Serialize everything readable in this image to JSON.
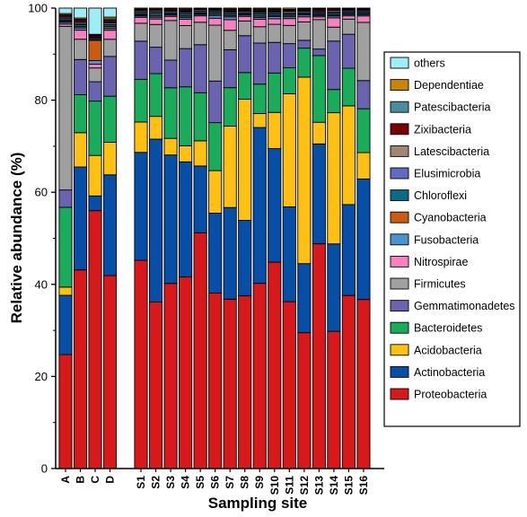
{
  "chart_data": {
    "type": "bar",
    "stacked": true,
    "xlabel": "Sampling site",
    "ylabel": "Relative abundance (%)",
    "ylim": [
      0,
      100
    ],
    "yticks": [
      0,
      20,
      40,
      60,
      80,
      100
    ],
    "grid": false,
    "legend_position": "right",
    "categories": [
      "A",
      "B",
      "C",
      "D",
      "S1",
      "S2",
      "S3",
      "S4",
      "S5",
      "S6",
      "S7",
      "S8",
      "S9",
      "S10",
      "S11",
      "S12",
      "S13",
      "S14",
      "S15",
      "S16"
    ],
    "series": [
      {
        "name": "Proteobacteria",
        "color": "#d7191c",
        "values": [
          25.0,
          44.0,
          56.0,
          42.7,
          45.3,
          36.6,
          40.2,
          41.6,
          51.5,
          38.0,
          36.6,
          37.5,
          39.7,
          44.5,
          36.6,
          29.5,
          48.8,
          29.5,
          37.7,
          36.6
        ]
      },
      {
        "name": "Actinobacteria",
        "color": "#074ea6",
        "values": [
          13.0,
          22.8,
          3.2,
          22.3,
          23.5,
          35.8,
          27.9,
          25.0,
          14.6,
          17.3,
          19.8,
          16.4,
          33.4,
          24.5,
          20.8,
          15.0,
          21.7,
          18.8,
          19.8,
          26.1
        ]
      },
      {
        "name": "Acidobacteria",
        "color": "#fdc013",
        "values": [
          1.8,
          7.6,
          8.8,
          7.2,
          6.6,
          5.0,
          3.6,
          3.5,
          5.5,
          9.2,
          17.6,
          26.3,
          3.0,
          7.8,
          24.8,
          40.5,
          4.7,
          28.2,
          21.5,
          5.7
        ]
      },
      {
        "name": "Bacteroidetes",
        "color": "#1aab5b",
        "values": [
          17.5,
          8.4,
          11.8,
          10.2,
          9.3,
          9.4,
          11.0,
          12.8,
          10.5,
          10.4,
          8.3,
          5.8,
          6.3,
          8.5,
          5.7,
          6.3,
          14.5,
          5.0,
          8.2,
          9.5
        ]
      },
      {
        "name": "Gemmatimonadetes",
        "color": "#6a64b0",
        "values": [
          3.8,
          7.8,
          4.2,
          8.8,
          8.3,
          5.8,
          6.0,
          8.3,
          10.5,
          9.0,
          8.2,
          8.0,
          8.8,
          6.6,
          5.3,
          1.7,
          1.4,
          10.4,
          7.4,
          6.1
        ]
      },
      {
        "name": "Firmicutes",
        "color": "#a0a0a0",
        "values": [
          35.9,
          4.5,
          3.0,
          3.8,
          3.9,
          5.0,
          8.6,
          5.0,
          4.9,
          12.1,
          4.2,
          3.2,
          3.5,
          3.9,
          4.0,
          4.0,
          6.4,
          3.0,
          3.3,
          12.6
        ]
      },
      {
        "name": "Nitrospirae",
        "color": "#f780bf",
        "values": [
          0.5,
          2.0,
          0.8,
          2.0,
          1.3,
          1.2,
          0.9,
          1.4,
          1.4,
          1.5,
          2.3,
          1.0,
          1.6,
          1.2,
          1.5,
          1.1,
          0.6,
          2.0,
          0.7,
          1.4
        ]
      },
      {
        "name": "Fusobacteria",
        "color": "#4a92d0",
        "values": [
          0.4,
          0.5,
          0.8,
          0.4,
          0.3,
          0.4,
          0.3,
          0.4,
          0.3,
          0.6,
          0.6,
          0.3,
          0.4,
          0.5,
          0.4,
          0.4,
          0.3,
          0.4,
          0.3,
          0.3
        ]
      },
      {
        "name": "Cyanobacteria",
        "color": "#cc5a11",
        "values": [
          0.2,
          0.3,
          4.4,
          0.4,
          0.2,
          0.3,
          0.2,
          0.3,
          0.2,
          0.3,
          0.3,
          0.2,
          0.3,
          0.2,
          0.3,
          0.2,
          0.2,
          0.2,
          0.2,
          0.2
        ]
      },
      {
        "name": "Chloroflexi",
        "color": "#086c86",
        "values": [
          0.3,
          0.4,
          0.2,
          0.4,
          0.3,
          0.5,
          0.3,
          0.5,
          0.2,
          0.4,
          0.4,
          0.3,
          0.5,
          0.4,
          0.3,
          0.3,
          0.3,
          0.4,
          0.3,
          0.3
        ]
      },
      {
        "name": "Elusimicrobia",
        "color": "#5e6bc1",
        "values": [
          0.3,
          0.3,
          0.3,
          0.4,
          0.3,
          0.3,
          0.3,
          0.3,
          0.3,
          0.3,
          0.3,
          0.3,
          0.3,
          0.3,
          0.3,
          0.3,
          0.3,
          0.3,
          0.3,
          0.3
        ]
      },
      {
        "name": "Latescibacteria",
        "color": "#a28675",
        "values": [
          0.3,
          0.3,
          0.2,
          0.2,
          0.3,
          0.3,
          0.2,
          0.2,
          0.3,
          0.2,
          0.2,
          0.2,
          0.2,
          0.2,
          0.3,
          0.2,
          0.2,
          0.3,
          0.2,
          0.2
        ]
      },
      {
        "name": "Zixibacteria",
        "color": "#7a0000",
        "values": [
          0.3,
          0.4,
          0.3,
          0.4,
          0.2,
          0.3,
          0.3,
          0.3,
          0.2,
          0.2,
          0.3,
          0.3,
          0.3,
          0.3,
          0.2,
          0.3,
          0.3,
          0.3,
          0.2,
          0.2
        ]
      },
      {
        "name": "Patescibacteria",
        "color": "#4a8c9e",
        "values": [
          0.2,
          0.2,
          0.2,
          0.3,
          0.2,
          0.1,
          0.1,
          0.2,
          0.1,
          0.1,
          0.2,
          0.1,
          0.2,
          0.2,
          0.2,
          0.1,
          0.2,
          0.1,
          0.1,
          0.1
        ]
      },
      {
        "name": "Dependentiae",
        "color": "#c8850a",
        "values": [
          0.3,
          0.3,
          0.1,
          0.4,
          0.2,
          0.2,
          0.1,
          0.2,
          0.1,
          0.1,
          0.2,
          0.1,
          0.2,
          0.2,
          0.3,
          0.1,
          0.1,
          0.1,
          0.1,
          0.1
        ]
      },
      {
        "name": "others",
        "color": "#9deef7",
        "values": [
          1.2,
          2.2,
          5.7,
          2.0,
          0.0,
          0.0,
          0.0,
          0.0,
          0.0,
          0.0,
          0.0,
          0.0,
          0.0,
          0.0,
          0.0,
          0.0,
          0.0,
          0.0,
          0.0,
          0.0
        ]
      }
    ],
    "legend_order": [
      "others",
      "Dependentiae",
      "Patescibacteria",
      "Zixibacteria",
      "Latescibacteria",
      "Elusimicrobia",
      "Chloroflexi",
      "Cyanobacteria",
      "Fusobacteria",
      "Nitrospirae",
      "Firmicutes",
      "Gemmatimonadetes",
      "Bacteroidetes",
      "Acidobacteria",
      "Actinobacteria",
      "Proteobacteria"
    ]
  }
}
